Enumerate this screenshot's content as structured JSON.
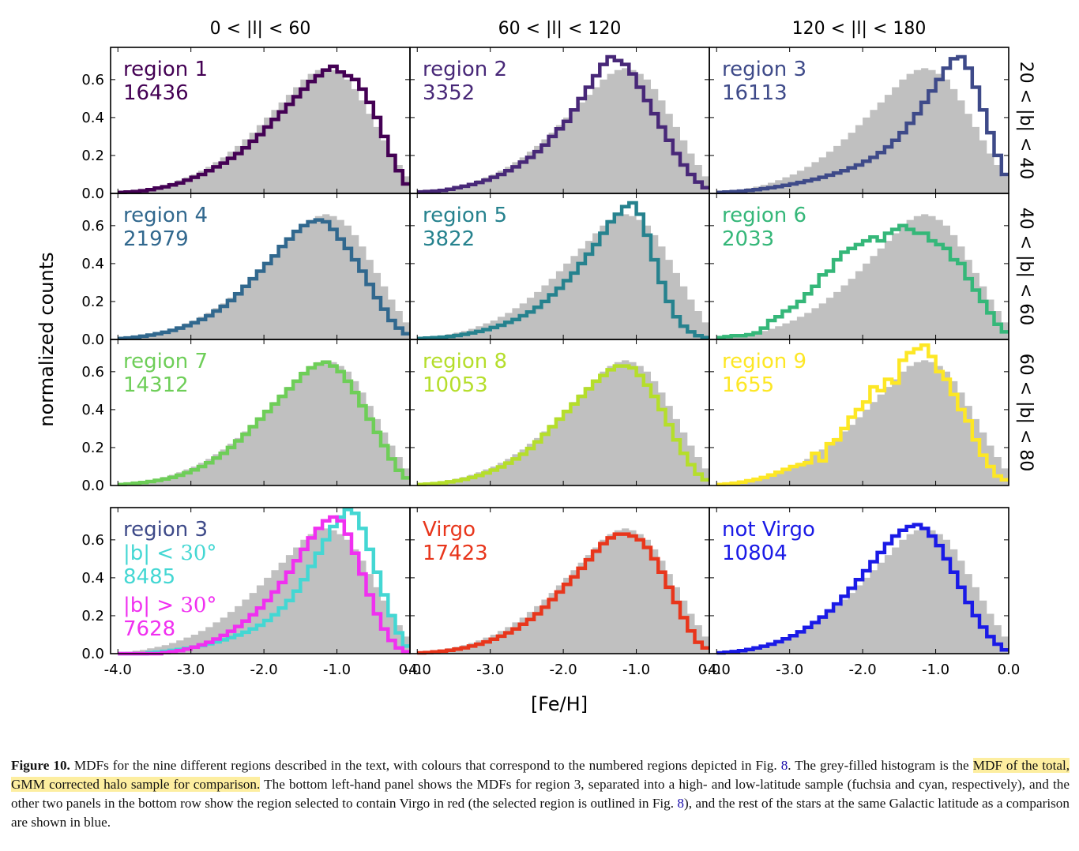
{
  "chart_data": {
    "type": "histogram-grid",
    "x_label": "[Fe/H]",
    "y_label": "normalized counts",
    "x_ticks": [
      "-4.0",
      "-3.0",
      "-2.0",
      "-1.0",
      "0.0"
    ],
    "y_ticks": [
      "0.0",
      "0.2",
      "0.4",
      "0.6"
    ],
    "xlim": [
      -4.1,
      0.0
    ],
    "ylim": [
      0.0,
      0.77
    ],
    "column_titles": [
      "0 < |l| < 60",
      "60 < |l| < 120",
      "120 < |l| < 180"
    ],
    "row_titles": [
      "20 < |b| < 40",
      "40 < |b| < 60",
      "60 < |b| < 80"
    ],
    "bin_start": -3.95,
    "bin_width": 0.1,
    "total_halo_sample": [
      0.005,
      0.01,
      0.015,
      0.02,
      0.028,
      0.036,
      0.045,
      0.056,
      0.07,
      0.085,
      0.1,
      0.12,
      0.14,
      0.165,
      0.19,
      0.22,
      0.25,
      0.285,
      0.32,
      0.36,
      0.4,
      0.44,
      0.48,
      0.52,
      0.56,
      0.6,
      0.63,
      0.65,
      0.66,
      0.65,
      0.63,
      0.6,
      0.55,
      0.49,
      0.42,
      0.35,
      0.28,
      0.21,
      0.15,
      0.09
    ],
    "panels": [
      {
        "name": "region 1",
        "count": "16436",
        "color": "#440154",
        "values": [
          0.005,
          0.007,
          0.01,
          0.014,
          0.02,
          0.028,
          0.035,
          0.045,
          0.055,
          0.07,
          0.085,
          0.1,
          0.12,
          0.14,
          0.16,
          0.185,
          0.21,
          0.24,
          0.275,
          0.31,
          0.35,
          0.39,
          0.43,
          0.47,
          0.51,
          0.55,
          0.59,
          0.62,
          0.65,
          0.67,
          0.64,
          0.62,
          0.6,
          0.55,
          0.48,
          0.4,
          0.3,
          0.2,
          0.12,
          0.05
        ]
      },
      {
        "name": "region 2",
        "count": "3352",
        "color": "#482878",
        "values": [
          0.008,
          0.01,
          0.012,
          0.016,
          0.022,
          0.03,
          0.038,
          0.047,
          0.058,
          0.07,
          0.085,
          0.1,
          0.12,
          0.14,
          0.165,
          0.19,
          0.22,
          0.255,
          0.3,
          0.34,
          0.38,
          0.44,
          0.5,
          0.56,
          0.62,
          0.68,
          0.72,
          0.7,
          0.68,
          0.63,
          0.56,
          0.49,
          0.42,
          0.35,
          0.28,
          0.21,
          0.15,
          0.1,
          0.06,
          0.03
        ]
      },
      {
        "name": "region 3",
        "count": "16113",
        "color": "#3e4a89",
        "values": [
          0.005,
          0.007,
          0.009,
          0.012,
          0.016,
          0.02,
          0.025,
          0.03,
          0.036,
          0.043,
          0.05,
          0.058,
          0.066,
          0.075,
          0.085,
          0.096,
          0.108,
          0.12,
          0.135,
          0.15,
          0.17,
          0.19,
          0.215,
          0.245,
          0.28,
          0.32,
          0.37,
          0.42,
          0.48,
          0.54,
          0.6,
          0.66,
          0.71,
          0.72,
          0.66,
          0.56,
          0.44,
          0.32,
          0.2,
          0.1
        ]
      },
      {
        "name": "region 4",
        "count": "21979",
        "color": "#31688e",
        "values": [
          0.005,
          0.008,
          0.012,
          0.017,
          0.023,
          0.03,
          0.038,
          0.048,
          0.06,
          0.073,
          0.088,
          0.105,
          0.125,
          0.15,
          0.175,
          0.205,
          0.24,
          0.28,
          0.32,
          0.36,
          0.4,
          0.44,
          0.49,
          0.53,
          0.57,
          0.6,
          0.62,
          0.63,
          0.62,
          0.58,
          0.53,
          0.48,
          0.42,
          0.36,
          0.29,
          0.22,
          0.16,
          0.1,
          0.06,
          0.03
        ]
      },
      {
        "name": "region 5",
        "count": "3822",
        "color": "#26828e",
        "values": [
          0.005,
          0.007,
          0.009,
          0.012,
          0.016,
          0.021,
          0.027,
          0.034,
          0.042,
          0.052,
          0.063,
          0.075,
          0.09,
          0.105,
          0.125,
          0.145,
          0.17,
          0.2,
          0.235,
          0.27,
          0.31,
          0.35,
          0.4,
          0.45,
          0.5,
          0.56,
          0.62,
          0.66,
          0.7,
          0.72,
          0.66,
          0.55,
          0.42,
          0.3,
          0.2,
          0.12,
          0.07,
          0.04,
          0.02,
          0.01
        ]
      },
      {
        "name": "region 6",
        "count": "2033",
        "color": "#35b779",
        "values": [
          0.01,
          0.015,
          0.02,
          0.02,
          0.025,
          0.035,
          0.06,
          0.1,
          0.12,
          0.15,
          0.17,
          0.2,
          0.24,
          0.28,
          0.34,
          0.36,
          0.42,
          0.46,
          0.48,
          0.5,
          0.52,
          0.54,
          0.52,
          0.56,
          0.58,
          0.6,
          0.58,
          0.56,
          0.56,
          0.52,
          0.5,
          0.48,
          0.42,
          0.4,
          0.32,
          0.26,
          0.2,
          0.14,
          0.08,
          0.04
        ]
      },
      {
        "name": "region 7",
        "count": "14312",
        "color": "#6ece58",
        "values": [
          0.005,
          0.008,
          0.012,
          0.016,
          0.021,
          0.027,
          0.034,
          0.043,
          0.054,
          0.067,
          0.082,
          0.1,
          0.12,
          0.145,
          0.17,
          0.2,
          0.235,
          0.27,
          0.31,
          0.35,
          0.39,
          0.43,
          0.47,
          0.51,
          0.55,
          0.59,
          0.62,
          0.64,
          0.65,
          0.63,
          0.6,
          0.55,
          0.49,
          0.42,
          0.35,
          0.28,
          0.21,
          0.14,
          0.08,
          0.04
        ]
      },
      {
        "name": "region 8",
        "count": "10053",
        "color": "#b5de2b",
        "values": [
          0.005,
          0.007,
          0.01,
          0.014,
          0.019,
          0.025,
          0.033,
          0.042,
          0.053,
          0.066,
          0.081,
          0.098,
          0.118,
          0.14,
          0.165,
          0.195,
          0.23,
          0.27,
          0.31,
          0.35,
          0.39,
          0.43,
          0.47,
          0.51,
          0.55,
          0.58,
          0.61,
          0.63,
          0.63,
          0.62,
          0.58,
          0.53,
          0.47,
          0.4,
          0.32,
          0.24,
          0.17,
          0.11,
          0.06,
          0.03
        ]
      },
      {
        "name": "region 9",
        "count": "1655",
        "color": "#fde725",
        "values": [
          0.005,
          0.008,
          0.012,
          0.018,
          0.025,
          0.033,
          0.042,
          0.055,
          0.07,
          0.085,
          0.1,
          0.11,
          0.12,
          0.17,
          0.13,
          0.22,
          0.24,
          0.3,
          0.36,
          0.4,
          0.44,
          0.52,
          0.5,
          0.56,
          0.54,
          0.66,
          0.7,
          0.72,
          0.74,
          0.68,
          0.6,
          0.56,
          0.48,
          0.4,
          0.34,
          0.24,
          0.16,
          0.1,
          0.05,
          0.03
        ]
      },
      {
        "name": "region 3",
        "count": "",
        "color": "#3e4a89",
        "values": [
          0.0,
          0.0,
          0.0,
          0.0,
          0.0,
          0.0,
          0.0,
          0.0,
          0.0,
          0.0,
          0.0,
          0.0,
          0.0,
          0.0,
          0.0,
          0.0,
          0.0,
          0.0,
          0.0,
          0.0,
          0.0,
          0.0,
          0.0,
          0.0,
          0.0,
          0.0,
          0.0,
          0.0,
          0.0,
          0.0,
          0.0,
          0.0,
          0.0,
          0.0,
          0.0,
          0.0,
          0.0,
          0.0,
          0.0,
          0.0
        ],
        "overlays": [
          {
            "label": "|b| < 30°",
            "count": "8485",
            "color": "#44d7d3",
            "values": [
              0.0,
              0.0,
              0.0,
              0.0,
              0.005,
              0.008,
              0.012,
              0.017,
              0.022,
              0.028,
              0.035,
              0.043,
              0.052,
              0.062,
              0.073,
              0.085,
              0.098,
              0.113,
              0.13,
              0.15,
              0.175,
              0.205,
              0.24,
              0.28,
              0.33,
              0.39,
              0.46,
              0.53,
              0.6,
              0.67,
              0.72,
              0.76,
              0.74,
              0.66,
              0.55,
              0.43,
              0.31,
              0.2,
              0.11,
              0.04
            ]
          },
          {
            "label": "|b| > 30°",
            "count": "7628",
            "color": "#f030f0",
            "values": [
              0.0,
              0.0,
              0.0,
              0.0,
              0.0,
              0.0,
              0.005,
              0.01,
              0.016,
              0.024,
              0.034,
              0.046,
              0.06,
              0.077,
              0.096,
              0.118,
              0.143,
              0.172,
              0.205,
              0.24,
              0.28,
              0.325,
              0.375,
              0.43,
              0.49,
              0.55,
              0.61,
              0.66,
              0.7,
              0.72,
              0.7,
              0.63,
              0.53,
              0.42,
              0.31,
              0.21,
              0.13,
              0.07,
              0.03,
              0.01
            ]
          }
        ]
      },
      {
        "name": "Virgo",
        "count": "17423",
        "color": "#e8361c",
        "values": [
          0.004,
          0.006,
          0.009,
          0.013,
          0.018,
          0.024,
          0.031,
          0.04,
          0.05,
          0.062,
          0.076,
          0.092,
          0.11,
          0.13,
          0.155,
          0.18,
          0.21,
          0.245,
          0.285,
          0.325,
          0.365,
          0.405,
          0.45,
          0.495,
          0.54,
          0.58,
          0.61,
          0.63,
          0.63,
          0.62,
          0.6,
          0.56,
          0.5,
          0.43,
          0.35,
          0.27,
          0.19,
          0.12,
          0.06,
          0.03
        ]
      },
      {
        "name": "not Virgo",
        "count": "10804",
        "color": "#1a1ae6",
        "values": [
          0.004,
          0.007,
          0.011,
          0.016,
          0.022,
          0.03,
          0.039,
          0.05,
          0.063,
          0.078,
          0.095,
          0.115,
          0.138,
          0.164,
          0.193,
          0.225,
          0.262,
          0.302,
          0.345,
          0.39,
          0.437,
          0.485,
          0.533,
          0.58,
          0.62,
          0.65,
          0.67,
          0.68,
          0.66,
          0.62,
          0.57,
          0.5,
          0.43,
          0.35,
          0.27,
          0.2,
          0.14,
          0.09,
          0.05,
          0.02
        ]
      }
    ]
  },
  "caption": {
    "figure_label": "Figure 10.",
    "text_1": "MDFs for the nine different regions described in the text, with colours that correspond to the numbered regions depicted in Fig.",
    "ref_1": "8",
    "text_2": ". The grey-filled histogram is the",
    "highlighted": "MDF of the total, GMM corrected halo sample for comparison.",
    "text_3": "The bottom left-hand panel shows the MDFs for region 3, separated into a high- and low-latitude sample (fuchsia and cyan, respectively), and the other two panels in the bottom row show the region selected to contain Virgo in red (the selected region is outlined in Fig.",
    "ref_2": "8",
    "text_4": "), and the rest of the stars at the same Galactic latitude as a comparison are shown in blue."
  }
}
